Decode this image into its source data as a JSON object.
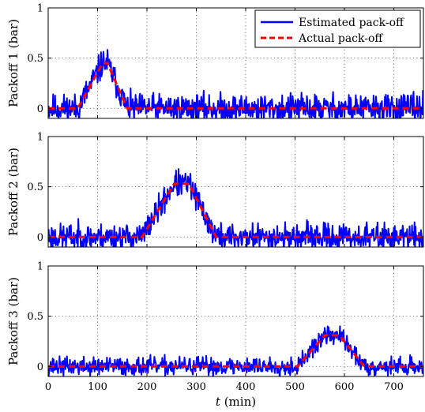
{
  "chart_data": {
    "type": "line",
    "xlabel_var": "t",
    "xlabel_unit": " (min)",
    "xlim": [
      0,
      760
    ],
    "xticks": [
      0,
      100,
      200,
      300,
      400,
      500,
      600,
      700
    ],
    "grid": true,
    "legend": {
      "placement": "top-right",
      "entries": [
        {
          "label": "Estimated pack-off",
          "color": "#0000ff",
          "style": "solid"
        },
        {
          "label": "Actual pack-off",
          "color": "#ff0000",
          "style": "dashed"
        }
      ]
    },
    "panels": [
      {
        "ylabel": "Packoff 1 (bar)",
        "ylim": [
          -0.1,
          1
        ],
        "yticks": [
          0,
          0.5,
          1
        ],
        "actual": {
          "x": [
            0,
            60,
            110,
            120,
            160,
            760
          ],
          "y": [
            0,
            0,
            0.45,
            0.45,
            0,
            0
          ]
        },
        "noise_amplitude": 0.07,
        "noise_seed": 11
      },
      {
        "ylabel": "Packoff 2 (bar)",
        "ylim": [
          -0.1,
          1
        ],
        "yticks": [
          0,
          0.5,
          1
        ],
        "actual": {
          "x": [
            0,
            190,
            255,
            285,
            340,
            760
          ],
          "y": [
            0,
            0,
            0.53,
            0.53,
            0,
            0
          ]
        },
        "noise_amplitude": 0.065,
        "noise_seed": 23
      },
      {
        "ylabel": "Packoff 3 (bar)",
        "ylim": [
          -0.1,
          1
        ],
        "yticks": [
          0,
          0.5,
          1
        ],
        "actual": {
          "x": [
            0,
            505,
            560,
            590,
            640,
            760
          ],
          "y": [
            0,
            0,
            0.31,
            0.31,
            0,
            0
          ]
        },
        "noise_amplitude": 0.045,
        "noise_seed": 37
      }
    ]
  }
}
